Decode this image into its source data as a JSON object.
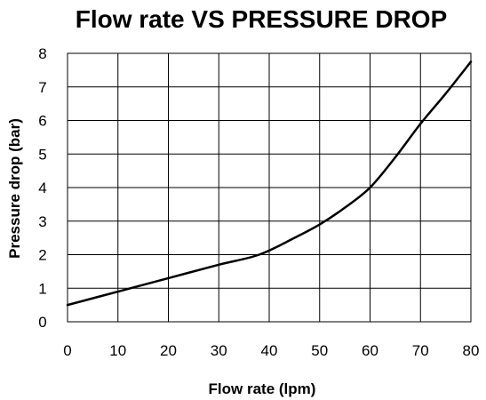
{
  "chart_data": {
    "type": "line",
    "title": "Flow rate VS PRESSURE DROP",
    "xlabel": "Flow rate (lpm)",
    "ylabel": "Pressure drop (bar)",
    "xlim": [
      0,
      80
    ],
    "ylim": [
      0,
      8
    ],
    "xticks": [
      0,
      10,
      20,
      30,
      40,
      50,
      60,
      70,
      80
    ],
    "yticks": [
      0,
      1,
      2,
      3,
      4,
      5,
      6,
      7,
      8
    ],
    "grid": true,
    "legend": "none",
    "line_color": "#000000",
    "series": [
      {
        "x": [
          0,
          10,
          20,
          30,
          38,
          45,
          50,
          55,
          60,
          65,
          70,
          75,
          80
        ],
        "y": [
          0.5,
          0.9,
          1.3,
          1.7,
          2.0,
          2.5,
          2.9,
          3.4,
          4.0,
          4.9,
          5.9,
          6.8,
          7.75
        ]
      }
    ]
  }
}
